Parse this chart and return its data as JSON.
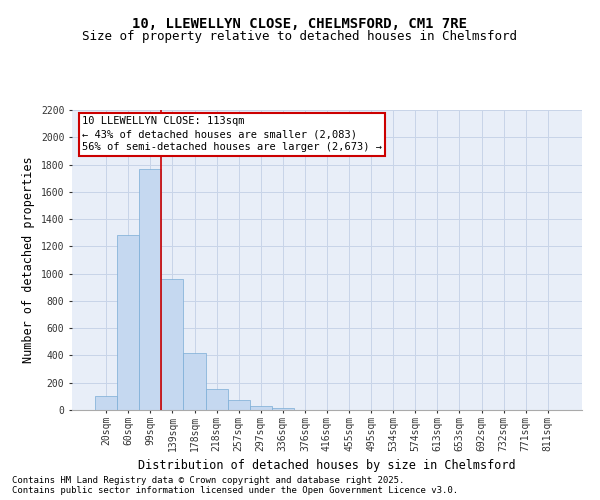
{
  "title_line1": "10, LLEWELLYN CLOSE, CHELMSFORD, CM1 7RE",
  "title_line2": "Size of property relative to detached houses in Chelmsford",
  "xlabel": "Distribution of detached houses by size in Chelmsford",
  "ylabel": "Number of detached properties",
  "categories": [
    "20sqm",
    "60sqm",
    "99sqm",
    "139sqm",
    "178sqm",
    "218sqm",
    "257sqm",
    "297sqm",
    "336sqm",
    "376sqm",
    "416sqm",
    "455sqm",
    "495sqm",
    "534sqm",
    "574sqm",
    "613sqm",
    "653sqm",
    "692sqm",
    "732sqm",
    "771sqm",
    "811sqm"
  ],
  "values": [
    100,
    1280,
    1770,
    960,
    420,
    155,
    70,
    30,
    15,
    0,
    0,
    0,
    0,
    0,
    0,
    0,
    0,
    0,
    0,
    0,
    0
  ],
  "bar_color": "#c5d8f0",
  "bar_edgecolor": "#7aacd6",
  "grid_color": "#c8d4e8",
  "background_color": "#e8eef8",
  "vline_x_index": 2.5,
  "vline_color": "#cc0000",
  "annotation_text": "10 LLEWELLYN CLOSE: 113sqm\n← 43% of detached houses are smaller (2,083)\n56% of semi-detached houses are larger (2,673) →",
  "annotation_box_color": "#cc0000",
  "ylim": [
    0,
    2200
  ],
  "yticks": [
    0,
    200,
    400,
    600,
    800,
    1000,
    1200,
    1400,
    1600,
    1800,
    2000,
    2200
  ],
  "footnote_line1": "Contains HM Land Registry data © Crown copyright and database right 2025.",
  "footnote_line2": "Contains public sector information licensed under the Open Government Licence v3.0.",
  "title_fontsize": 10,
  "subtitle_fontsize": 9,
  "axis_label_fontsize": 8.5,
  "tick_fontsize": 7,
  "annotation_fontsize": 7.5,
  "footnote_fontsize": 6.5
}
